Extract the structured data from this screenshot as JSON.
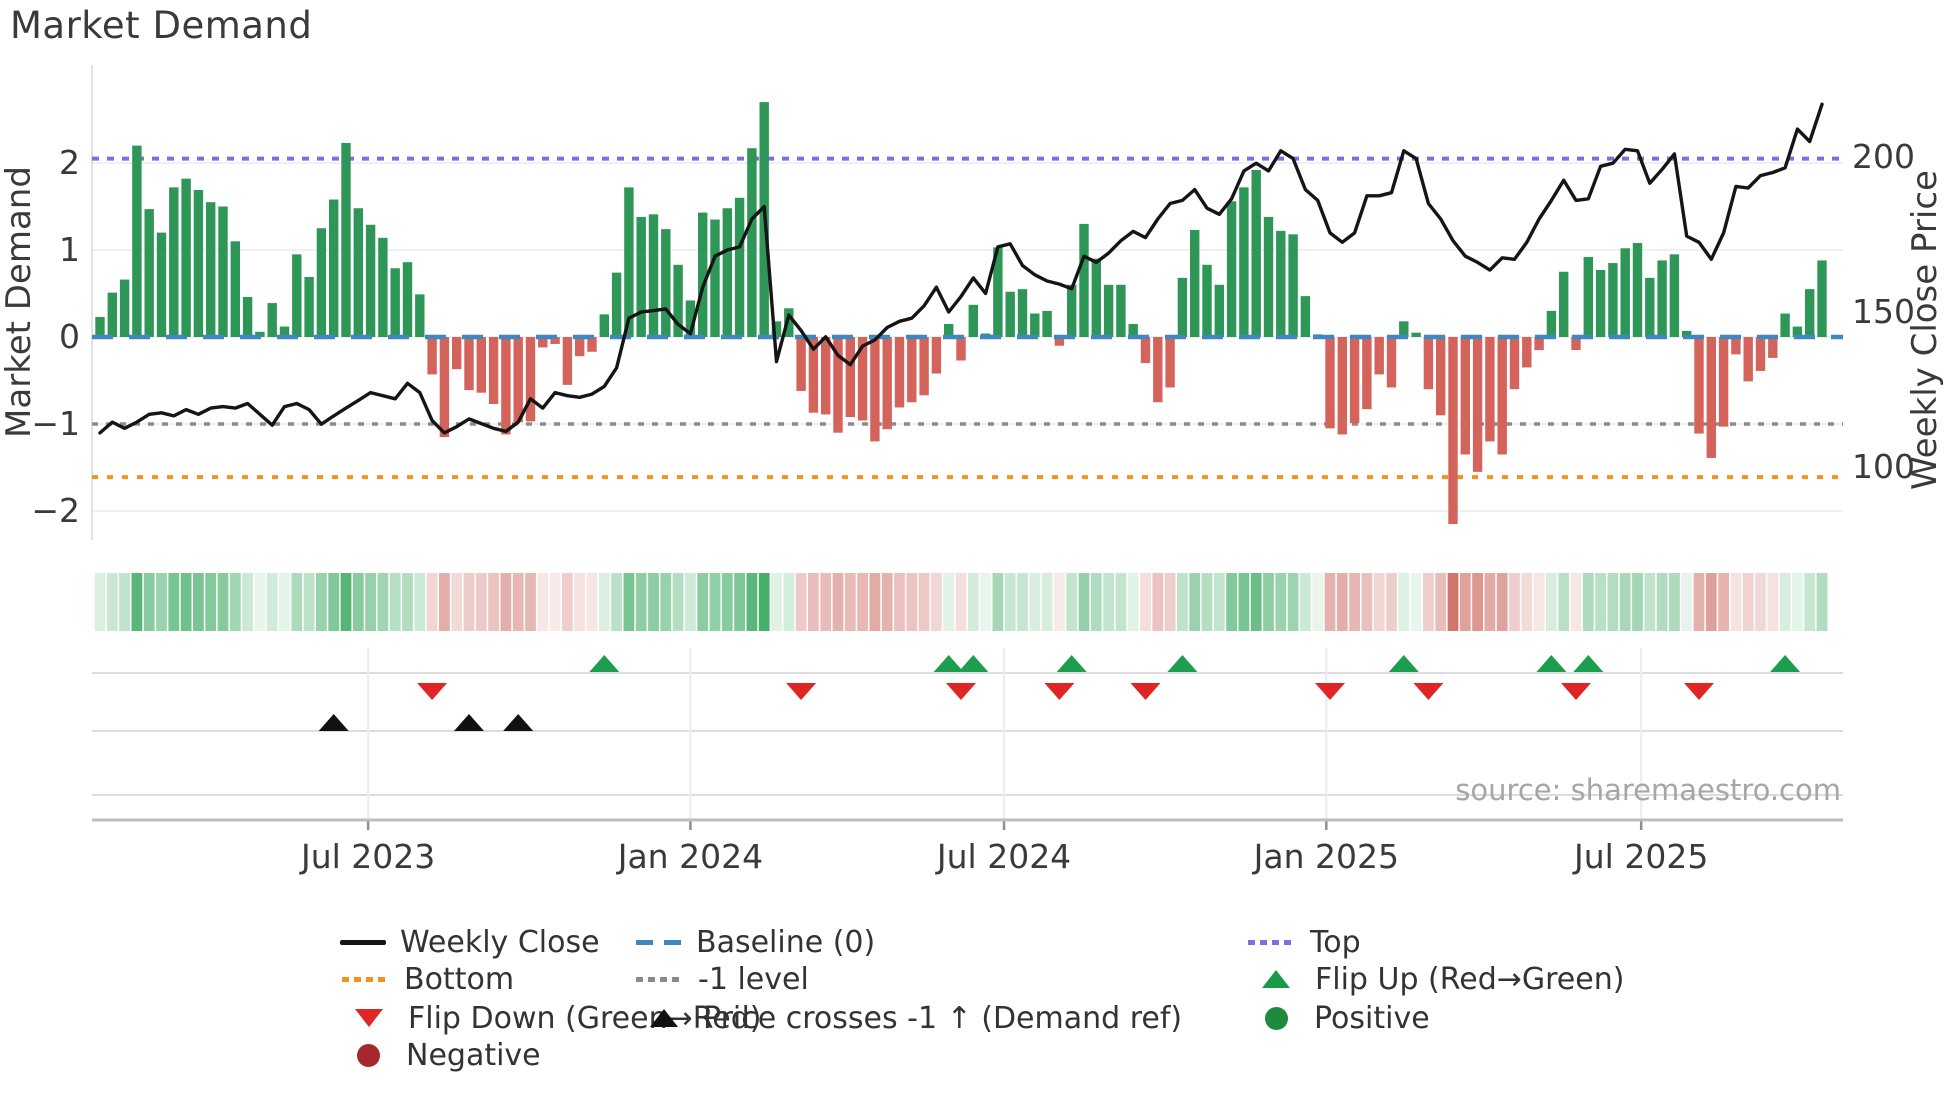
{
  "title": "Market Demand",
  "source": "source: sharemaestro.com",
  "axes": {
    "left_label": "Market Demand",
    "right_label": "Weekly Close Price",
    "left_ticks": [
      {
        "label": "2",
        "value": 2
      },
      {
        "label": "1",
        "value": 1
      },
      {
        "label": "0",
        "value": 0
      },
      {
        "label": "−1",
        "value": -1
      },
      {
        "label": "−2",
        "value": -2
      }
    ],
    "right_ticks": [
      {
        "label": "200",
        "price": 200
      },
      {
        "label": "150",
        "price": 150
      },
      {
        "label": "100",
        "price": 100
      }
    ],
    "x_ticks": [
      {
        "label": "Jul 2023",
        "week": 22.8
      },
      {
        "label": "Jan 2024",
        "week": 49.0
      },
      {
        "label": "Jul 2024",
        "week": 74.5
      },
      {
        "label": "Jan 2025",
        "week": 100.7
      },
      {
        "label": "Jul 2025",
        "week": 126.3
      }
    ]
  },
  "ref_lines": {
    "top": {
      "label": "Top",
      "demand_value": 2.05,
      "color": "#7b70dd",
      "style": "dotted"
    },
    "baseline": {
      "label": "Baseline (0)",
      "demand_value": 0,
      "color": "#3f87c0",
      "style": "dashed"
    },
    "neg1": {
      "label": "-1 level",
      "demand_value": -1,
      "color": "#8b8b8b",
      "style": "dotted"
    },
    "bottom": {
      "label": "Bottom",
      "demand_value": -1.61,
      "color": "#f0941f",
      "style": "dotted"
    }
  },
  "chart_data": {
    "type": "bar",
    "title": "Market Demand",
    "x": "week_index (weekly bars, ~Feb 2023 to Oct 2025)",
    "xlabel": "",
    "ylabel_left": "Market Demand",
    "ylabel_right": "Weekly Close Price",
    "ylim_left": [
      -2.4,
      2.9
    ],
    "right_axis_calibration": {
      "price_200_equals_demand": 2.07,
      "price_150_equals_demand": 0.29,
      "price_100_equals_demand": -1.49
    },
    "grid": "horizontal, light",
    "legend_position": "bottom, 3 columns",
    "series": [
      {
        "name": "Market Demand (green positive / red negative weekly bars)",
        "axis": "left",
        "values": [
          0.23,
          0.51,
          0.66,
          2.2,
          1.47,
          1.2,
          1.72,
          1.82,
          1.69,
          1.55,
          1.5,
          1.1,
          0.46,
          0.06,
          0.39,
          0.12,
          0.95,
          0.69,
          1.25,
          1.58,
          2.23,
          1.48,
          1.29,
          1.14,
          0.79,
          0.86,
          0.49,
          -0.43,
          -1.15,
          -0.37,
          -0.61,
          -0.64,
          -0.77,
          -1.12,
          -0.98,
          -0.97,
          -0.12,
          -0.08,
          -0.55,
          -0.22,
          -0.17,
          0.26,
          0.74,
          1.72,
          1.38,
          1.41,
          1.24,
          0.83,
          0.42,
          1.43,
          1.35,
          1.48,
          1.6,
          2.17,
          2.7,
          0.18,
          0.33,
          -0.62,
          -0.87,
          -0.89,
          -1.1,
          -0.92,
          -0.96,
          -1.2,
          -1.06,
          -0.81,
          -0.75,
          -0.67,
          -0.42,
          0.15,
          -0.27,
          0.37,
          0.04,
          1.03,
          0.52,
          0.55,
          0.27,
          0.3,
          -0.1,
          0.6,
          1.3,
          0.9,
          0.6,
          0.6,
          0.15,
          -0.3,
          -0.75,
          -0.58,
          0.68,
          1.23,
          0.83,
          0.6,
          1.56,
          1.72,
          1.92,
          1.38,
          1.22,
          1.18,
          0.47,
          0.03,
          -1.05,
          -1.12,
          -0.99,
          -0.83,
          -0.43,
          -0.58,
          0.18,
          0.05,
          -0.6,
          -0.9,
          -2.15,
          -1.35,
          -1.55,
          -1.2,
          -1.35,
          -0.6,
          -0.35,
          -0.15,
          0.3,
          0.75,
          -0.15,
          0.92,
          0.77,
          0.85,
          1.02,
          1.08,
          0.68,
          0.88,
          0.95,
          0.07,
          -1.11,
          -1.39,
          -1.03,
          -0.2,
          -0.51,
          -0.39,
          -0.24,
          0.27,
          0.12,
          0.55,
          0.88
        ]
      },
      {
        "name": "Weekly Close",
        "axis": "right",
        "type": "line",
        "values": [
          111,
          114.5,
          112.5,
          114.5,
          117,
          117.5,
          116.5,
          118.5,
          117,
          119,
          119.5,
          119,
          120.5,
          117,
          113.5,
          119.5,
          120.5,
          118.5,
          113.8,
          116.5,
          119,
          121.5,
          124,
          123,
          122,
          127,
          124,
          115,
          111,
          113,
          115.5,
          114,
          112.5,
          111.5,
          114.5,
          122,
          119,
          124,
          123,
          122.5,
          123.5,
          126,
          132,
          148,
          150,
          150.5,
          151,
          146,
          143,
          158,
          168,
          170,
          171,
          180,
          184,
          134,
          149,
          144,
          138,
          142,
          136,
          133,
          139,
          141,
          145,
          147,
          148,
          152,
          158,
          150,
          155,
          161,
          156,
          171,
          172,
          165,
          162,
          160,
          159,
          157.5,
          168,
          166,
          169,
          173,
          176,
          174,
          180,
          185,
          186,
          189.5,
          183.5,
          181.5,
          186.5,
          195.5,
          198,
          195.5,
          202,
          199.5,
          189.5,
          186,
          175.5,
          172.5,
          175.5,
          187.5,
          187.5,
          188.5,
          202,
          199.5,
          185,
          180,
          173,
          168,
          166,
          163.5,
          167.5,
          167,
          172.5,
          180,
          186,
          192.5,
          186,
          186.5,
          197,
          198,
          202.5,
          202,
          191.5,
          196,
          201,
          174.5,
          172.5,
          167,
          175.5,
          190.5,
          190,
          194,
          195,
          196.5,
          209,
          205,
          217
        ]
      }
    ],
    "heatmap_strip": "same 141 weekly demand values, color intensity by magnitude (green positive, red negative)",
    "markers": {
      "flip_up_weeks": [
        42,
        70,
        72,
        80,
        89,
        107,
        119,
        122,
        138
      ],
      "flip_down_weeks": [
        28,
        58,
        71,
        79,
        86,
        101,
        109,
        121,
        131
      ],
      "price_crosses_neg1_up_weeks": [
        20,
        31,
        35
      ]
    }
  },
  "legend": {
    "items": [
      {
        "label": "Weekly Close",
        "swatch": "line-black"
      },
      {
        "label": "Bottom",
        "swatch": "dotted-orange"
      },
      {
        "label": "Flip Down (Green→Red)",
        "swatch": "triangle-down-red"
      },
      {
        "label": "Negative",
        "swatch": "circle-darkred"
      },
      {
        "label": "Baseline (0)",
        "swatch": "dashed-blue"
      },
      {
        "label": "-1 level",
        "swatch": "dotted-gray"
      },
      {
        "label": "Price crosses -1 ↑ (Demand ref)",
        "swatch": "triangle-up-black"
      },
      {
        "label": "Top",
        "swatch": "dotted-purple"
      },
      {
        "label": "Flip Up (Red→Green)",
        "swatch": "triangle-up-green"
      },
      {
        "label": "Positive",
        "swatch": "circle-green"
      }
    ]
  },
  "colors": {
    "bar_positive": "#2e9657",
    "bar_negative": "#d4635c",
    "price_line": "#151515",
    "baseline": "#3f87c0",
    "top_line": "#7b70dd",
    "bottom_line": "#f0941f",
    "neg1_line": "#8b8b8b",
    "flip_up_marker": "#1d9e4f",
    "flip_down_marker": "#e02525",
    "price_cross_marker": "#111111",
    "heat_green_base": [
      56,
      168,
      94
    ],
    "heat_red_base": [
      198,
      88,
      78
    ],
    "grid": "#ebebf0",
    "subgrid": "#dcdce0",
    "axis_text": "#3a3a3a",
    "source_text": "#a6a6a6"
  }
}
